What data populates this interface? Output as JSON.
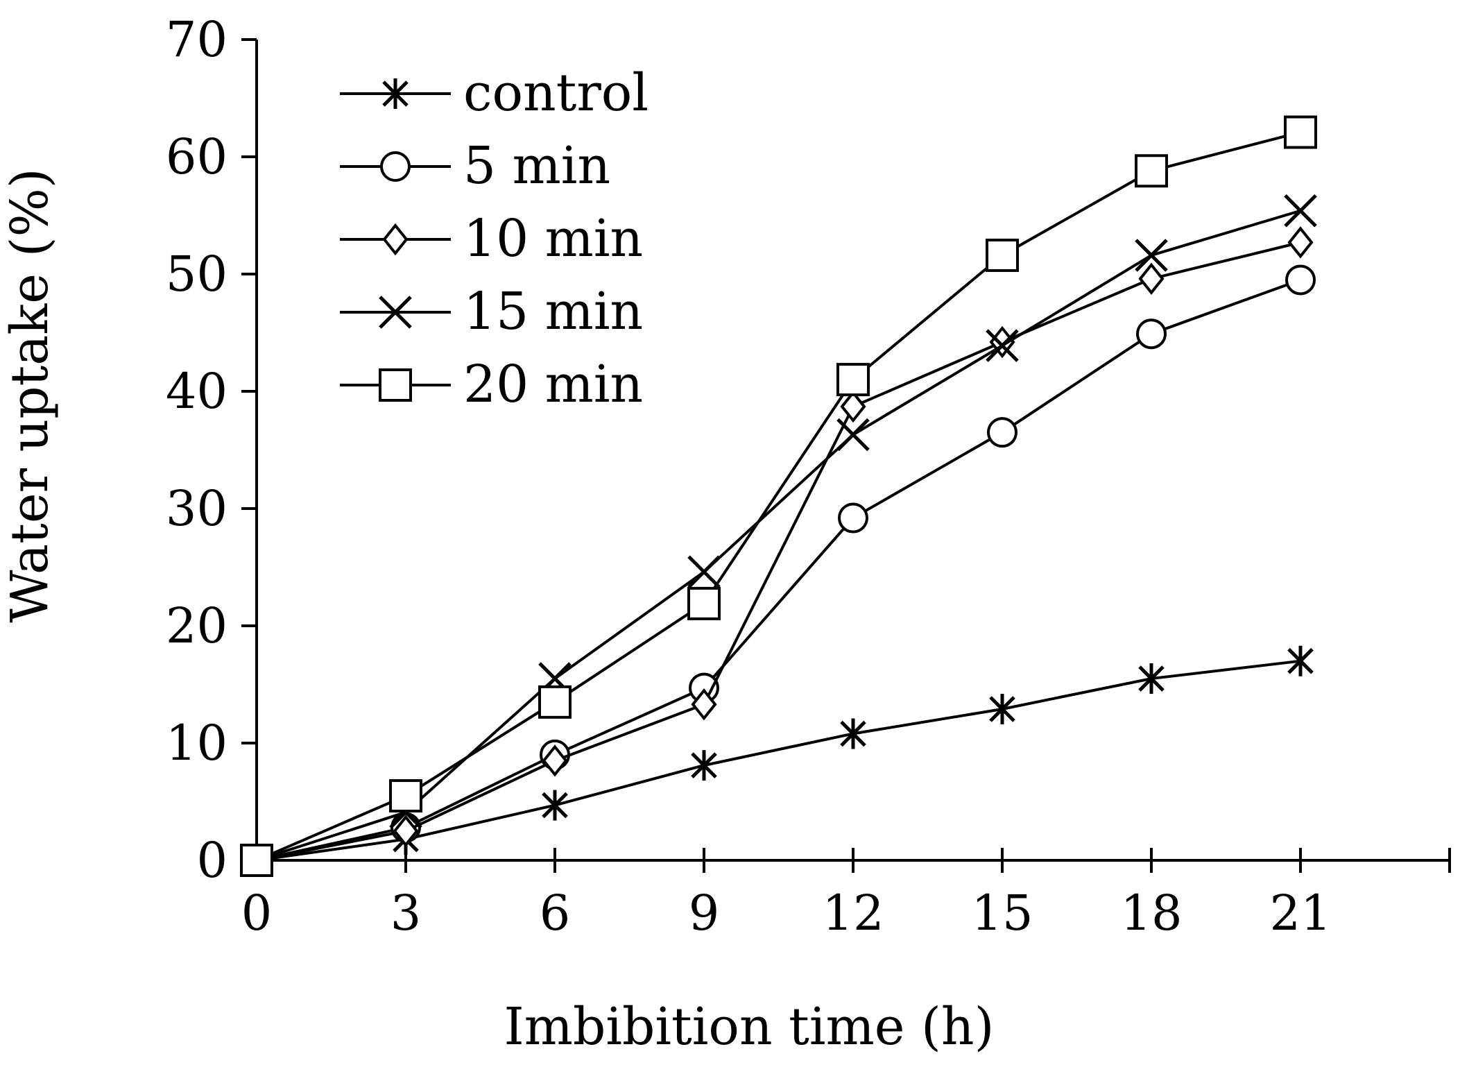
{
  "chart_data": {
    "type": "line",
    "title": "",
    "xlabel": "Imbibition time (h)",
    "ylabel": "Water uptake (%)",
    "x": [
      0,
      3,
      6,
      9,
      12,
      15,
      18,
      21
    ],
    "xticks": [
      0,
      3,
      6,
      9,
      12,
      15,
      18,
      21
    ],
    "yticks": [
      0,
      10,
      20,
      30,
      40,
      50,
      60,
      70
    ],
    "xlim": [
      0,
      24
    ],
    "ylim": [
      0,
      70
    ],
    "grid": false,
    "legend_position": "top-left",
    "series": [
      {
        "name": "control",
        "marker": "asterisk",
        "values": [
          0,
          1.8,
          4.7,
          8.1,
          10.8,
          12.9,
          15.5,
          17.0
        ]
      },
      {
        "name": "5 min",
        "marker": "circle",
        "values": [
          0,
          2.8,
          9.0,
          14.7,
          29.2,
          36.5,
          44.9,
          49.5
        ]
      },
      {
        "name": "10 min",
        "marker": "diamond",
        "values": [
          0,
          2.5,
          8.5,
          13.3,
          38.7,
          44.2,
          49.6,
          52.7
        ]
      },
      {
        "name": "15 min",
        "marker": "x",
        "values": [
          0,
          4.1,
          15.5,
          24.6,
          36.3,
          43.9,
          51.6,
          55.4
        ]
      },
      {
        "name": "20 min",
        "marker": "square",
        "values": [
          0,
          5.5,
          13.5,
          21.9,
          41.0,
          51.6,
          58.8,
          62.1
        ]
      }
    ]
  }
}
